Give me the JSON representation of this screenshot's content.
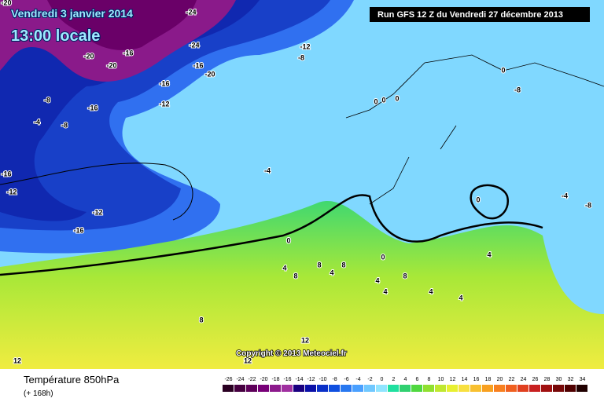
{
  "header": {
    "date": "Vendredi 3 janvier 2014",
    "time": "13:00 locale",
    "run": "Run GFS 12 Z du Vendredi 27 décembre 2013"
  },
  "copyright": "Copyright © 2013 Meteociel.fr",
  "footer": {
    "parameter": "Température 850hPa",
    "lead_time": "(+ 168h)"
  },
  "contour_labels": [
    "-20",
    "-24",
    "-20",
    "-20",
    "-16",
    "-24",
    "-16",
    "-20",
    "-16",
    "-12",
    "-16",
    "-8",
    "-4",
    "-8",
    "-12",
    "-8",
    "0",
    "-8",
    "0",
    "0",
    "0",
    "-4",
    "-16",
    "-12",
    "-12",
    "-16",
    "0",
    "0",
    "-4",
    "-8",
    "0",
    "4",
    "8",
    "8",
    "8",
    "4",
    "4",
    "4",
    "8",
    "4",
    "4",
    "4",
    "8",
    "12",
    "12",
    "12"
  ],
  "legend": {
    "labels": [
      "-26",
      "-24",
      "-22",
      "-20",
      "-18",
      "-16",
      "-14",
      "-12",
      "-10",
      "-8",
      "-6",
      "-4",
      "-2",
      "0",
      "2",
      "4",
      "6",
      "8",
      "10",
      "12",
      "14",
      "16",
      "18",
      "20",
      "22",
      "24",
      "26",
      "28",
      "30",
      "32",
      "34"
    ],
    "colors": [
      "#2a0022",
      "#460040",
      "#5e005a",
      "#780078",
      "#8c1a8c",
      "#a030a0",
      "#1a0080",
      "#0a10a8",
      "#0a30c8",
      "#1050e0",
      "#2878f0",
      "#4aa0ff",
      "#70c8ff",
      "#90e4ff",
      "#20e0a0",
      "#30d070",
      "#50d840",
      "#90e030",
      "#c0e830",
      "#e8f030",
      "#f8e040",
      "#f8c030",
      "#f8a020",
      "#f88020",
      "#f06020",
      "#e04020",
      "#c82020",
      "#a01010",
      "#780808",
      "#500000",
      "#200000"
    ]
  }
}
